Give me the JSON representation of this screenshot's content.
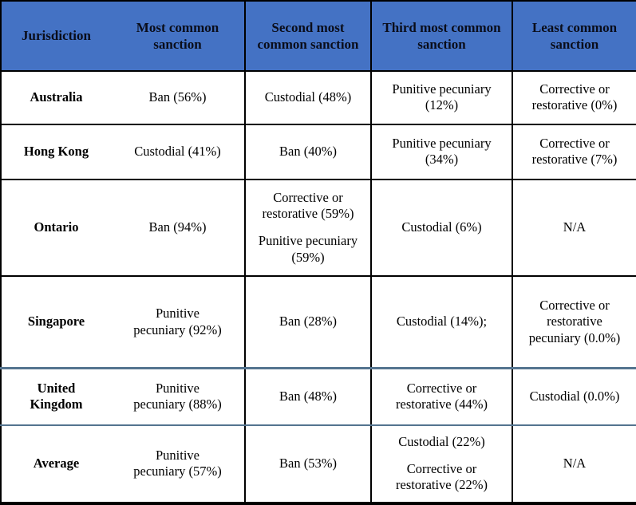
{
  "table": {
    "columns": [
      {
        "label": "Jurisdiction"
      },
      {
        "label": "Most common sanction"
      },
      {
        "label": "Second most common sanction"
      },
      {
        "label": "Third most common sanction"
      },
      {
        "label": "Least common sanction"
      }
    ],
    "rows": [
      {
        "jurisdiction": "Australia",
        "highlighted": false,
        "cells": [
          [
            "Ban (56%)"
          ],
          [
            "Custodial (48%)"
          ],
          [
            "Punitive pecuniary (12%)"
          ],
          [
            "Corrective or restorative (0%)"
          ]
        ]
      },
      {
        "jurisdiction": "Hong Kong",
        "highlighted": false,
        "cells": [
          [
            "Custodial (41%)"
          ],
          [
            "Ban (40%)"
          ],
          [
            "Punitive pecuniary (34%)"
          ],
          [
            "Corrective or restorative (7%)"
          ]
        ]
      },
      {
        "jurisdiction": "Ontario",
        "highlighted": false,
        "cells": [
          [
            "Ban (94%)"
          ],
          [
            "Corrective or restorative (59%)",
            "Punitive pecuniary (59%)"
          ],
          [
            "Custodial (6%)"
          ],
          [
            "N/A"
          ]
        ]
      },
      {
        "jurisdiction": "Singapore",
        "highlighted": false,
        "cells": [
          [
            "Punitive pecuniary (92%)"
          ],
          [
            "Ban (28%)"
          ],
          [
            "Custodial (14%);"
          ],
          [
            "Corrective or restorative pecuniary (0.0%)"
          ]
        ]
      },
      {
        "jurisdiction": "United Kingdom",
        "highlighted": true,
        "cells": [
          [
            "Punitive pecuniary (88%)"
          ],
          [
            "Ban (48%)"
          ],
          [
            "Corrective or restorative (44%)"
          ],
          [
            "Custodial (0.0%)"
          ]
        ]
      },
      {
        "jurisdiction": "Average",
        "highlighted": false,
        "cells": [
          [
            "Punitive pecuniary (57%)"
          ],
          [
            "Ban (53%)"
          ],
          [
            "Custodial (22%)",
            "Corrective or restorative (22%)"
          ],
          [
            "N/A"
          ]
        ]
      }
    ]
  },
  "colors": {
    "header_bg": "#4472C4",
    "header_text": "#0a0d1a",
    "body_text": "#000000",
    "grid_line": "#000000",
    "highlight_line": "#54748F"
  }
}
